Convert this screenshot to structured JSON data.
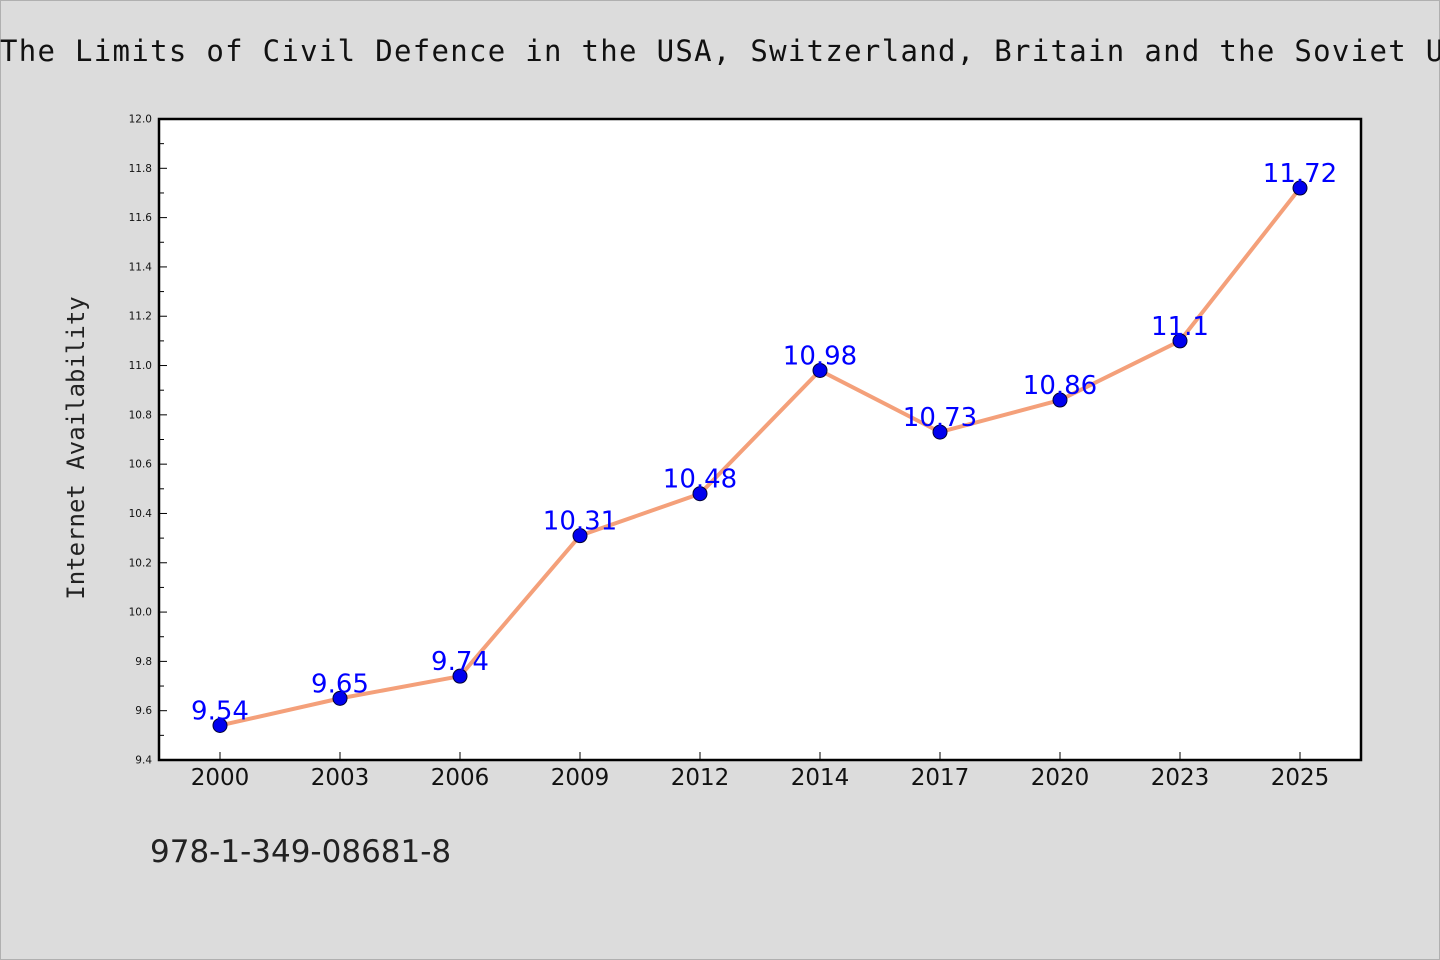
{
  "chart_data": {
    "type": "line",
    "title": "The Limits of Civil Defence in the USA, Switzerland, Britain and the Soviet Unio",
    "ylabel": "Internet Availability",
    "xlabel": "",
    "categories": [
      "2000",
      "2003",
      "2006",
      "2009",
      "2012",
      "2014",
      "2017",
      "2020",
      "2023",
      "2025"
    ],
    "values": [
      9.54,
      9.65,
      9.74,
      10.31,
      10.48,
      10.98,
      10.73,
      10.86,
      11.1,
      11.72
    ],
    "data_labels": [
      "9.54",
      "9.65",
      "9.74",
      "10.31",
      "10.48",
      "10.98",
      "10.73",
      "10.86",
      "11.1",
      "11.72"
    ],
    "ylim": [
      9.4,
      12.0
    ],
    "yticks": [
      "9.4",
      "9.6",
      "9.8",
      "10.0",
      "10.2",
      "10.4",
      "10.6",
      "10.8",
      "11.0",
      "11.2",
      "11.4",
      "11.6",
      "11.8",
      "12.0"
    ],
    "grid": false,
    "line_color": "#f4a07a",
    "marker_color": "#0000ee",
    "label_color": "#0000ff"
  },
  "footer": {
    "isbn": "978-1-349-08681-8"
  }
}
